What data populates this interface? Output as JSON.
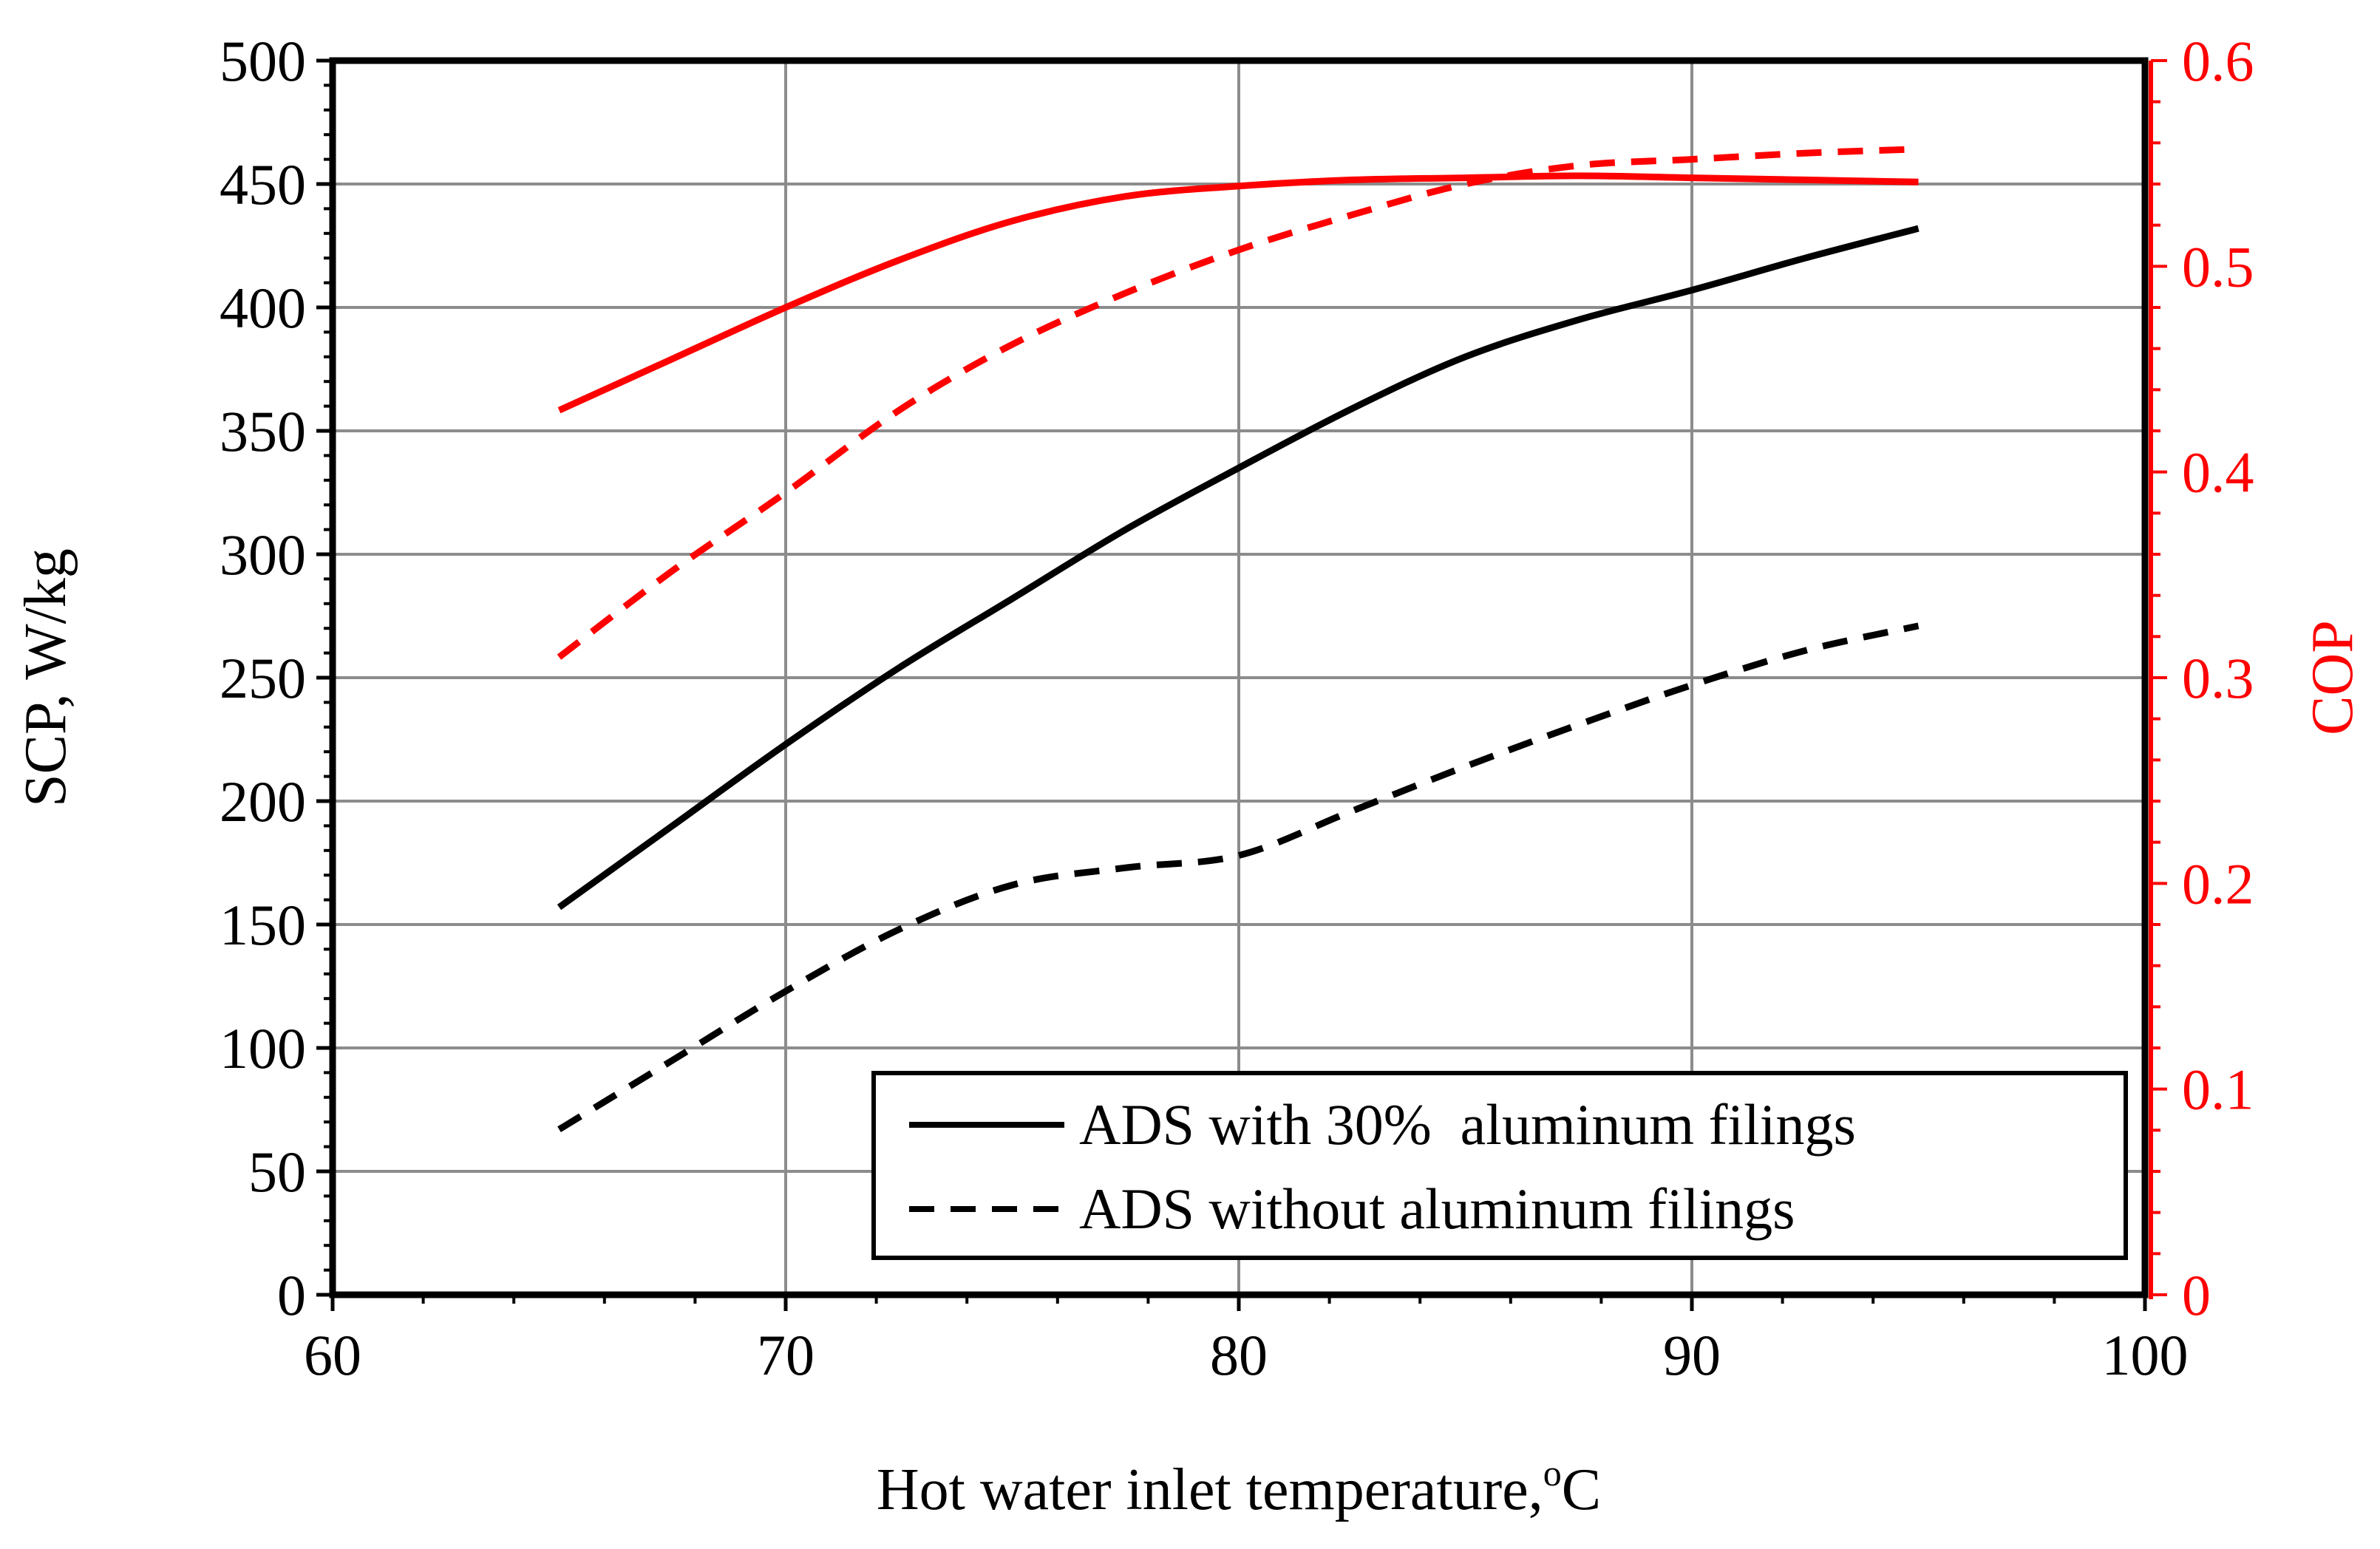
{
  "chart_data": {
    "type": "line",
    "title": "",
    "xlabel": "Hot water inlet temperature,",
    "xlabel_sup": "o",
    "xlabel_unit": "C",
    "ylabel": "SCP, W/kg",
    "y2label": "COP",
    "xlim": [
      60,
      100
    ],
    "ylim": [
      0,
      500
    ],
    "y2lim": [
      0,
      0.6
    ],
    "xticks": [
      60,
      70,
      80,
      90,
      100
    ],
    "yticks": [
      0,
      50,
      100,
      150,
      200,
      250,
      300,
      350,
      400,
      450,
      500
    ],
    "y2ticks": [
      "0",
      "0.1",
      "0.2",
      "0.3",
      "0.4",
      "0.5",
      "0.6"
    ],
    "grid": true,
    "legend_position": "bottom-right",
    "colors": {
      "black": "#000000",
      "red": "#ff0000",
      "grid": "#8c8c8c"
    },
    "series": [
      {
        "name": "ADS with 30%  aluminum filings",
        "metric": "SCP",
        "axis": "left",
        "style": "solid",
        "color": "#000000",
        "legend": true,
        "x": [
          65,
          67.5,
          70,
          72.5,
          75,
          77.5,
          80,
          82.5,
          85,
          87.5,
          90,
          92.5,
          95
        ],
        "y": [
          157,
          190,
          223,
          254,
          282,
          310,
          335,
          359,
          380,
          395,
          407,
          420,
          432
        ]
      },
      {
        "name": "ADS without aluminum filings",
        "metric": "SCP",
        "axis": "left",
        "style": "dashed",
        "color": "#000000",
        "legend": true,
        "x": [
          65,
          67.5,
          70,
          72.5,
          75,
          77.5,
          80,
          82.5,
          85,
          87.5,
          90,
          92.5,
          95
        ],
        "y": [
          67,
          95,
          123,
          148,
          166,
          173,
          178,
          196,
          214,
          231,
          247,
          261,
          271
        ]
      },
      {
        "name": "ADS with 30%  aluminum filings",
        "metric": "COP",
        "axis": "right",
        "style": "solid",
        "color": "#ff0000",
        "legend": false,
        "x": [
          65,
          67.5,
          70,
          72.5,
          75,
          77.5,
          80,
          82.5,
          85,
          87.5,
          90,
          92.5,
          95
        ],
        "y": [
          0.43,
          0.455,
          0.48,
          0.503,
          0.522,
          0.534,
          0.539,
          0.542,
          0.543,
          0.544,
          0.543,
          0.542,
          0.541
        ]
      },
      {
        "name": "ADS without aluminum filings",
        "metric": "COP",
        "axis": "right",
        "style": "dashed",
        "color": "#ff0000",
        "legend": false,
        "x": [
          65,
          67.5,
          70,
          72.5,
          75,
          77.5,
          80,
          82.5,
          85,
          87.5,
          90,
          92.5,
          95
        ],
        "y": [
          0.31,
          0.352,
          0.39,
          0.43,
          0.462,
          0.487,
          0.508,
          0.525,
          0.54,
          0.549,
          0.552,
          0.555,
          0.557
        ]
      }
    ]
  }
}
